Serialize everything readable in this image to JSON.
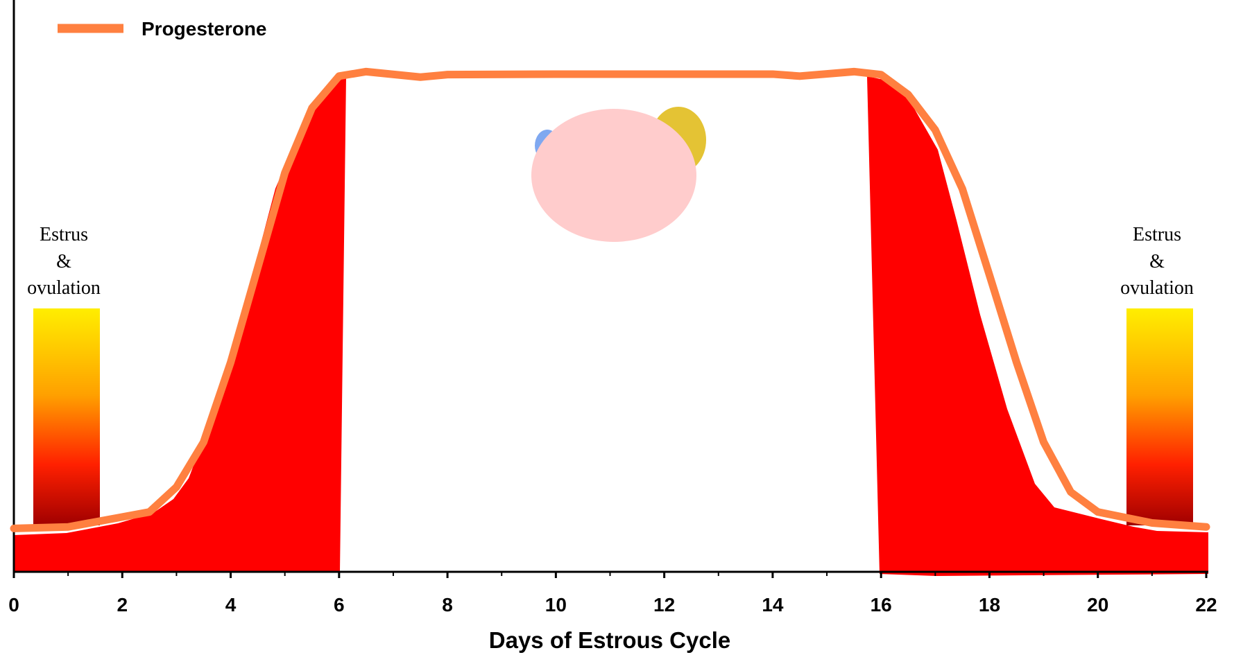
{
  "chart_data": {
    "type": "line",
    "x_label": "Days of Estrous Cycle",
    "x": [
      0,
      1,
      2,
      2.5,
      3,
      3.5,
      4,
      4.5,
      5,
      5.5,
      6,
      6.5,
      7.5,
      8,
      10,
      14,
      14.5,
      15.5,
      16,
      16.5,
      17,
      17.5,
      18,
      18.5,
      19,
      19.5,
      20,
      21,
      22
    ],
    "series": [
      {
        "name": "Progesterone",
        "color": "#ff8040",
        "values": [
          8.7,
          9,
          11,
          12,
          17,
          26,
          42,
          61,
          80,
          93,
          99.4,
          100.3,
          99.2,
          99.7,
          99.8,
          99.8,
          99.4,
          100.3,
          99.7,
          95.7,
          88.6,
          76.8,
          59.5,
          42,
          26,
          16,
          12,
          9.8,
          9
        ]
      }
    ],
    "xlim": [
      0,
      22
    ],
    "xticks": [
      0,
      2,
      4,
      6,
      8,
      10,
      12,
      14,
      16,
      18,
      20,
      22
    ],
    "xticks_minor": [
      1,
      3,
      5,
      7,
      9,
      11,
      13,
      15,
      17,
      19,
      21
    ],
    "ylim": [
      0,
      100
    ],
    "legend": "top-left",
    "annotations": [
      {
        "lines": [
          "Estrus",
          "&",
          "ovulation"
        ]
      },
      {
        "lines": [
          "Estrus",
          "&",
          "ovulation"
        ]
      }
    ]
  }
}
